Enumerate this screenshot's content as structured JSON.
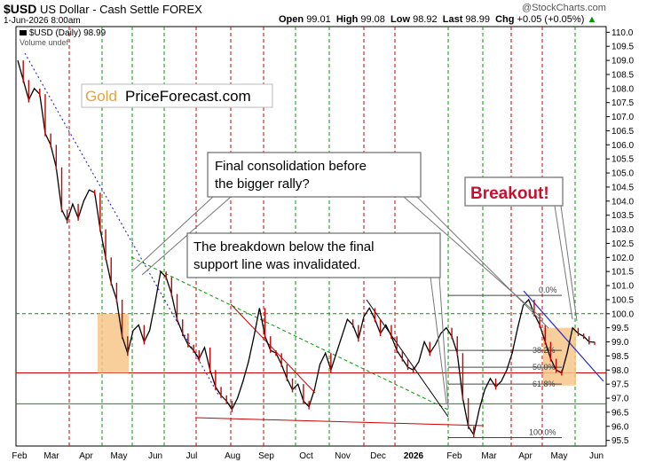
{
  "header": {
    "symbol": "$USD",
    "name": "US Dollar - Cash Settle",
    "exchange": "FOREX",
    "date": "1-Jun-2026 8:00am",
    "open_label": "Open",
    "open": "99.01",
    "high_label": "High",
    "high": "99.08",
    "low_label": "Low",
    "low": "98.92",
    "last_label": "Last",
    "last": "98.99",
    "chg_label": "Chg",
    "chg": "+0.05 (+0.05%)",
    "logo": "@StockCharts.com"
  },
  "legend": {
    "series": "$USD (Daily) 98.99",
    "volume": "Volume undef"
  },
  "watermark": {
    "gold": "Gold",
    "rest": "PriceForecast.com"
  },
  "annotations": {
    "consolidation_line1": "Final consolidation before",
    "consolidation_line2": "the bigger rally?",
    "breakdown_line1": "The breakdown below the final",
    "breakdown_line2": "support line was invalidated.",
    "breakout": "Breakout!",
    "fib_0": "0.0%",
    "fib_382": "38.2%",
    "fib_50": "50.0%",
    "fib_618": "61.8%",
    "fib_100": "100.0%"
  },
  "colors": {
    "price": "#000000",
    "down_bar": "#cc0000",
    "green_grid": "#009900",
    "red_grid": "#cc0000",
    "blue_trend": "#3333cc",
    "box_fill": "#f7c689",
    "breakout_text": "#c8102e"
  },
  "chart_data": {
    "type": "line",
    "title": "$USD US Dollar - Cash Settle FOREX",
    "ylim": [
      95.3,
      110.2
    ],
    "y_ticks": [
      95.5,
      96.0,
      96.5,
      97.0,
      97.5,
      98.0,
      98.5,
      99.0,
      99.5,
      100.0,
      100.5,
      101.0,
      101.5,
      102.0,
      102.5,
      103.0,
      103.5,
      104.0,
      104.5,
      105.0,
      105.5,
      106.0,
      106.5,
      107.0,
      107.5,
      108.0,
      108.5,
      109.0,
      109.5,
      110.0
    ],
    "x_labels": [
      "Feb",
      "Mar",
      "Apr",
      "May",
      "Jun",
      "Jul",
      "Aug",
      "Sep",
      "Oct",
      "Nov",
      "Dec",
      "2026",
      "Feb",
      "Mar",
      "Apr",
      "May",
      "Jun"
    ],
    "horizontal_lines": [
      {
        "y": 100.0,
        "color": "green",
        "style": "dashed"
      },
      {
        "y": 97.9,
        "color": "red",
        "style": "solid"
      },
      {
        "y": 96.8,
        "color": "green",
        "style": "solid"
      }
    ],
    "fibonacci": {
      "high": 100.65,
      "low": 95.6,
      "levels": [
        100.65,
        98.7,
        98.1,
        97.5,
        95.6
      ]
    },
    "series": [
      {
        "values": [
          [
            0,
            109.0
          ],
          [
            4,
            108.3
          ],
          [
            8,
            107.6
          ],
          [
            12,
            108.0
          ],
          [
            16,
            107.8
          ],
          [
            20,
            106.4
          ],
          [
            24,
            106.0
          ],
          [
            28,
            105.2
          ],
          [
            32,
            103.7
          ],
          [
            36,
            103.3
          ],
          [
            40,
            103.9
          ],
          [
            44,
            103.4
          ],
          [
            48,
            104.0
          ],
          [
            52,
            104.4
          ],
          [
            56,
            104.3
          ],
          [
            60,
            103.0
          ],
          [
            64,
            102.0
          ],
          [
            68,
            101.1
          ],
          [
            72,
            100.5
          ],
          [
            76,
            99.2
          ],
          [
            80,
            98.6
          ],
          [
            84,
            99.4
          ],
          [
            88,
            99.6
          ],
          [
            92,
            99.0
          ],
          [
            96,
            99.4
          ],
          [
            100,
            100.4
          ],
          [
            104,
            101.5
          ],
          [
            108,
            101.3
          ],
          [
            112,
            100.7
          ],
          [
            116,
            99.8
          ],
          [
            120,
            99.3
          ],
          [
            124,
            98.9
          ],
          [
            128,
            98.7
          ],
          [
            132,
            98.4
          ],
          [
            136,
            98.8
          ],
          [
            140,
            98.0
          ],
          [
            144,
            97.4
          ],
          [
            148,
            97.1
          ],
          [
            152,
            96.9
          ],
          [
            156,
            96.6
          ],
          [
            160,
            97.0
          ],
          [
            164,
            97.6
          ],
          [
            168,
            98.3
          ],
          [
            172,
            99.2
          ],
          [
            176,
            100.2
          ],
          [
            180,
            99.2
          ],
          [
            184,
            98.7
          ],
          [
            188,
            98.6
          ],
          [
            192,
            98.2
          ],
          [
            196,
            97.7
          ],
          [
            200,
            97.3
          ],
          [
            204,
            97.5
          ],
          [
            208,
            96.9
          ],
          [
            212,
            96.7
          ],
          [
            216,
            97.3
          ],
          [
            220,
            98.2
          ],
          [
            224,
            98.6
          ],
          [
            228,
            98.0
          ],
          [
            232,
            98.6
          ],
          [
            236,
            99.2
          ],
          [
            240,
            99.8
          ],
          [
            244,
            99.6
          ],
          [
            248,
            99.1
          ],
          [
            252,
            99.9
          ],
          [
            256,
            100.2
          ],
          [
            260,
            99.8
          ],
          [
            264,
            99.3
          ],
          [
            268,
            99.6
          ],
          [
            272,
            99.2
          ],
          [
            276,
            98.7
          ],
          [
            280,
            98.4
          ],
          [
            284,
            98.1
          ],
          [
            288,
            98.0
          ],
          [
            292,
            98.3
          ],
          [
            296,
            99.0
          ],
          [
            300,
            98.6
          ],
          [
            304,
            98.9
          ],
          [
            308,
            99.3
          ],
          [
            312,
            99.5
          ],
          [
            316,
            99.2
          ],
          [
            320,
            98.6
          ],
          [
            324,
            97.0
          ],
          [
            328,
            96.0
          ],
          [
            332,
            95.7
          ],
          [
            336,
            96.6
          ],
          [
            340,
            97.3
          ],
          [
            344,
            97.7
          ],
          [
            348,
            97.4
          ],
          [
            352,
            97.6
          ],
          [
            356,
            98.0
          ],
          [
            360,
            98.6
          ],
          [
            364,
            99.5
          ],
          [
            368,
            100.3
          ],
          [
            372,
            100.5
          ],
          [
            376,
            100.0
          ],
          [
            380,
            99.6
          ],
          [
            384,
            99.0
          ],
          [
            388,
            98.4
          ],
          [
            392,
            98.0
          ],
          [
            396,
            97.9
          ],
          [
            400,
            98.6
          ],
          [
            404,
            99.5
          ],
          [
            408,
            99.3
          ],
          [
            412,
            99.2
          ],
          [
            416,
            99.0
          ],
          [
            420,
            98.99
          ]
        ]
      }
    ]
  }
}
